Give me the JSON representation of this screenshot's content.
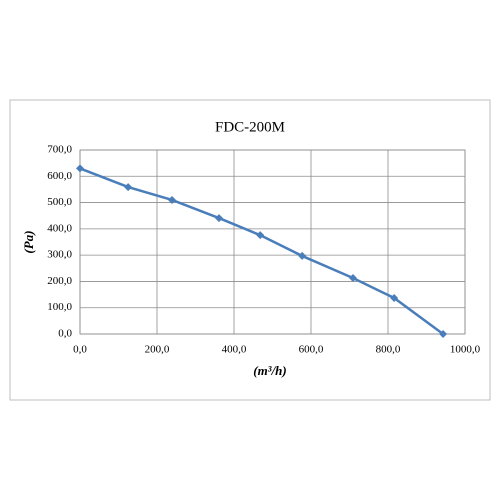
{
  "chart_data": {
    "type": "line",
    "title": "FDC-200M",
    "x_label": "(m³/h)",
    "y_label": "(Pa)",
    "x": [
      0,
      125,
      239,
      361,
      468,
      577,
      709,
      816,
      943
    ],
    "series": [
      {
        "color": "#4a7ebb",
        "values": [
          630,
          559,
          510,
          441,
          376,
          297,
          213,
          137,
          0
        ]
      }
    ],
    "xlim": [
      0,
      1000
    ],
    "ylim": [
      0,
      700
    ],
    "xticks": [
      {
        "value": 0,
        "label": "0,0"
      },
      {
        "value": 200,
        "label": "200,0"
      },
      {
        "value": 400,
        "label": "400,0"
      },
      {
        "value": 600,
        "label": "600,0"
      },
      {
        "value": 800,
        "label": "800,0"
      },
      {
        "value": 1000,
        "label": "1000,0"
      }
    ],
    "yticks": [
      {
        "value": 0,
        "label": "0,0"
      },
      {
        "value": 100,
        "label": "100,0"
      },
      {
        "value": 200,
        "label": "200,0"
      },
      {
        "value": 300,
        "label": "300,0"
      },
      {
        "value": 400,
        "label": "400,0"
      },
      {
        "value": 500,
        "label": "500,0"
      },
      {
        "value": 600,
        "label": "600,0"
      },
      {
        "value": 700,
        "label": "700,0"
      }
    ],
    "grid": true
  }
}
